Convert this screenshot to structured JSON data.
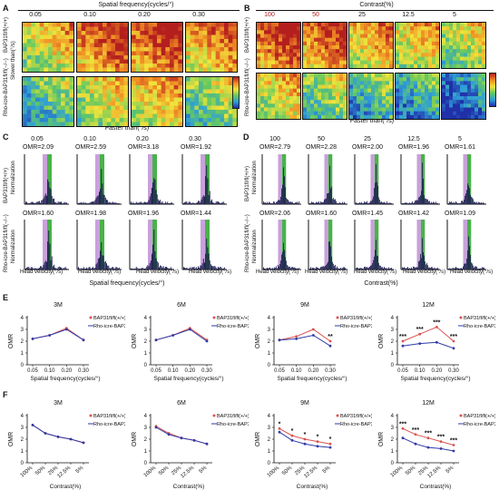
{
  "panels": {
    "A": {
      "label": "A",
      "title": "Spatial frequency(cycles/°)",
      "columns": [
        "0.05",
        "0.10",
        "0.20",
        "0.30"
      ],
      "row_labels": [
        "BAP31fl/fl(+/+)",
        "Rho-icre-BAP31fl/fl(−/−)"
      ],
      "y_axis_label": "Slower than(°/s)",
      "x_axis_label": "Faster than(°/s)"
    },
    "B": {
      "label": "B",
      "title": "Contrast(%)",
      "columns": [
        "100",
        "50",
        "25",
        "12.5",
        "5"
      ],
      "row_labels": [
        "BAP31fl/fl(+/+)",
        "Rho-icre-BAP31fl/fl(−/−)"
      ],
      "x_axis_label": "Faster than(°/s)"
    },
    "C": {
      "label": "C",
      "columns": [
        "0.05",
        "0.10",
        "0.20",
        "0.30"
      ],
      "omr_top": [
        "OMR=2.09",
        "OMR=2.59",
        "OMR=3.18",
        "OMR=1.92"
      ],
      "omr_bottom": [
        "OMR=1.60",
        "OMR=1.98",
        "OMR=1.96",
        "OMR=1.44"
      ],
      "row_labels": [
        "BAP31fl/fl(+/+)",
        "Rho-icre-BAP31fl/fl(−/−)"
      ],
      "y_label": "Normalization",
      "x_label": "Head velocity(°/s)",
      "bottom_title": "Spatial frequency(cycles/°)"
    },
    "D": {
      "label": "D",
      "columns": [
        "100",
        "50",
        "25",
        "12.5",
        "5"
      ],
      "omr_top": [
        "OMR=2.79",
        "OMR=2.28",
        "OMR=2.00",
        "OMR=1.96",
        "OMR=1.61"
      ],
      "omr_bottom": [
        "OMR=2.06",
        "OMR=1.60",
        "OMR=1.45",
        "OMR=1.42",
        "OMR=1.09"
      ],
      "row_labels": [
        "BAP31fl/fl(+/+)",
        "Rho-icre-BAP31fl/fl(−/−)"
      ],
      "y_label": "Normalization",
      "x_label": "Head velocity(°/s)",
      "bottom_title": "Contrast(%)"
    },
    "E": {
      "label": "E"
    },
    "F": {
      "label": "F"
    }
  },
  "legend": {
    "wt": "BAP31fl/fl(+/+)",
    "ko": "Rho-icre-BAP31fl/fl(−/−)",
    "wt_color": "#d9534f",
    "ko_color": "#2f3aa8"
  },
  "chart_data": [
    {
      "type": "line",
      "panel": "E",
      "title": "3M",
      "ylabel": "OMR",
      "xlabel": "Spatial frequency(cycles/°)",
      "categories": [
        "0.05",
        "0.10",
        "0.20",
        "0.30"
      ],
      "ylim": [
        0,
        4
      ],
      "yticks": [
        "0",
        "1",
        "2",
        "3",
        "4"
      ],
      "series": [
        {
          "name": "BAP31fl/fl(+/+)",
          "values": [
            2.2,
            2.5,
            3.1,
            2.1
          ]
        },
        {
          "name": "Rho-icre-BAP31fl/fl(−/−)",
          "values": [
            2.2,
            2.5,
            3.0,
            2.1
          ]
        }
      ],
      "annotations": []
    },
    {
      "type": "line",
      "panel": "E",
      "title": "6M",
      "ylabel": "OMR",
      "xlabel": "Spatial frequency(cycles/°)",
      "categories": [
        "0.05",
        "0.10",
        "0.20",
        "0.30"
      ],
      "ylim": [
        0,
        4
      ],
      "yticks": [
        "0",
        "1",
        "2",
        "3",
        "4"
      ],
      "series": [
        {
          "name": "BAP31fl/fl(+/+)",
          "values": [
            2.1,
            2.5,
            3.1,
            2.1
          ]
        },
        {
          "name": "Rho-icre-BAP31fl/fl(−/−)",
          "values": [
            2.1,
            2.5,
            3.0,
            2.0
          ]
        }
      ],
      "annotations": []
    },
    {
      "type": "line",
      "panel": "E",
      "title": "9M",
      "ylabel": "OMR",
      "xlabel": "Spatial frequency(cycles/°)",
      "categories": [
        "0.05",
        "0.10",
        "0.20",
        "0.30"
      ],
      "ylim": [
        0,
        4
      ],
      "yticks": [
        "0",
        "1",
        "2",
        "3",
        "4"
      ],
      "series": [
        {
          "name": "BAP31fl/fl(+/+)",
          "values": [
            2.1,
            2.4,
            3.0,
            2.0
          ]
        },
        {
          "name": "Rho-icre-BAP31fl/fl(−/−)",
          "values": [
            2.1,
            2.2,
            2.5,
            1.6
          ]
        }
      ],
      "annotations": [
        {
          "index": 3,
          "text": "**"
        }
      ]
    },
    {
      "type": "line",
      "panel": "E",
      "title": "12M",
      "ylabel": "OMR",
      "xlabel": "Spatial frequency(cycles/°)",
      "categories": [
        "0.05",
        "0.10",
        "0.20",
        "0.30"
      ],
      "ylim": [
        0,
        4
      ],
      "yticks": [
        "0",
        "1",
        "2",
        "3",
        "4"
      ],
      "series": [
        {
          "name": "BAP31fl/fl(+/+)",
          "values": [
            2.0,
            2.6,
            3.2,
            2.0
          ]
        },
        {
          "name": "Rho-icre-BAP31fl/fl(−/−)",
          "values": [
            1.6,
            1.8,
            1.9,
            1.4
          ]
        }
      ],
      "annotations": [
        {
          "index": 0,
          "text": "***"
        },
        {
          "index": 1,
          "text": "***"
        },
        {
          "index": 2,
          "text": "***"
        },
        {
          "index": 3,
          "text": "***"
        }
      ]
    },
    {
      "type": "line",
      "panel": "F",
      "title": "3M",
      "ylabel": "OMR",
      "xlabel": "Contrast(%)",
      "categories": [
        "100%",
        "50%",
        "25%",
        "12.5%",
        "5%"
      ],
      "ylim": [
        0,
        4
      ],
      "yticks": [
        "0",
        "1",
        "2",
        "3",
        "4"
      ],
      "series": [
        {
          "name": "BAP31fl/fl(+/+)",
          "values": [
            3.2,
            2.5,
            2.2,
            2.0,
            1.7
          ]
        },
        {
          "name": "Rho-icre-BAP31fl/fl(−/−)",
          "values": [
            3.2,
            2.5,
            2.2,
            2.0,
            1.7
          ]
        }
      ],
      "annotations": []
    },
    {
      "type": "line",
      "panel": "F",
      "title": "6M",
      "ylabel": "OMR",
      "xlabel": "Contrast(%)",
      "categories": [
        "100%",
        "50%",
        "25%",
        "12.5%",
        "5%"
      ],
      "ylim": [
        0,
        4
      ],
      "yticks": [
        "0",
        "1",
        "2",
        "3",
        "4"
      ],
      "series": [
        {
          "name": "BAP31fl/fl(+/+)",
          "values": [
            3.1,
            2.5,
            2.1,
            1.9,
            1.6
          ]
        },
        {
          "name": "Rho-icre-BAP31fl/fl(−/−)",
          "values": [
            3.0,
            2.4,
            2.1,
            1.9,
            1.6
          ]
        }
      ],
      "annotations": []
    },
    {
      "type": "line",
      "panel": "F",
      "title": "9M",
      "ylabel": "OMR",
      "xlabel": "Contrast(%)",
      "categories": [
        "100%",
        "50%",
        "25%",
        "12.5%",
        "5%"
      ],
      "ylim": [
        0,
        4
      ],
      "yticks": [
        "0",
        "1",
        "2",
        "3",
        "4"
      ],
      "series": [
        {
          "name": "BAP31fl/fl(+/+)",
          "values": [
            2.9,
            2.3,
            2.0,
            1.8,
            1.6
          ]
        },
        {
          "name": "Rho-icre-BAP31fl/fl(−/−)",
          "values": [
            2.6,
            1.9,
            1.6,
            1.4,
            1.3
          ]
        }
      ],
      "annotations": [
        {
          "index": 0,
          "text": "*"
        },
        {
          "index": 1,
          "text": "*"
        },
        {
          "index": 2,
          "text": "*"
        },
        {
          "index": 3,
          "text": "*"
        },
        {
          "index": 4,
          "text": "*"
        }
      ]
    },
    {
      "type": "line",
      "panel": "F",
      "title": "12M",
      "ylabel": "OMR",
      "xlabel": "Contrast(%)",
      "categories": [
        "100%",
        "50%",
        "25%",
        "12.5%",
        "5%"
      ],
      "ylim": [
        0,
        4
      ],
      "yticks": [
        "0",
        "1",
        "2",
        "3",
        "4"
      ],
      "series": [
        {
          "name": "BAP31fl/fl(+/+)",
          "values": [
            2.9,
            2.4,
            2.1,
            1.8,
            1.5
          ]
        },
        {
          "name": "Rho-icre-BAP31fl/fl(−/−)",
          "values": [
            2.1,
            1.6,
            1.3,
            1.2,
            1.0
          ]
        }
      ],
      "annotations": [
        {
          "index": 0,
          "text": "***"
        },
        {
          "index": 1,
          "text": "***"
        },
        {
          "index": 2,
          "text": "***"
        },
        {
          "index": 3,
          "text": "***"
        },
        {
          "index": 4,
          "text": "***"
        }
      ]
    }
  ]
}
